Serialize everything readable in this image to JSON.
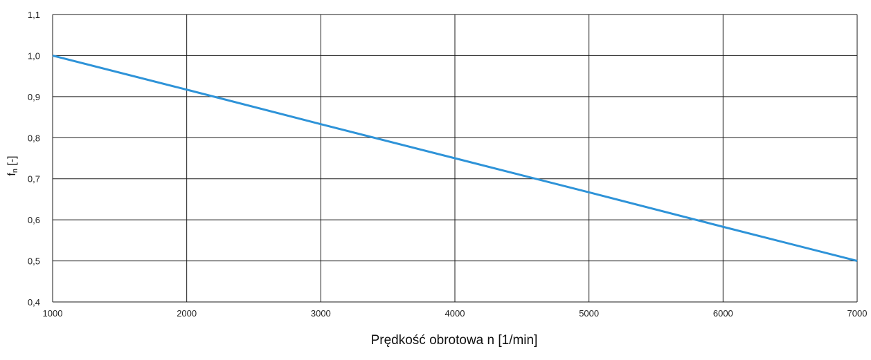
{
  "chart_data": {
    "type": "line",
    "title": "",
    "xlabel": "Prędkość obrotowa n [1/min]",
    "ylabel_main": "f",
    "ylabel_sub": "n",
    "ylabel_unit": " [-]",
    "xlim": [
      1000,
      7000
    ],
    "ylim": [
      0.4,
      1.1
    ],
    "grid": true,
    "x_ticks": [
      1000,
      2000,
      3000,
      4000,
      5000,
      6000,
      7000
    ],
    "x_tick_labels": [
      "1000",
      "2000",
      "3000",
      "4000",
      "5000",
      "6000",
      "7000"
    ],
    "y_ticks": [
      0.4,
      0.5,
      0.6,
      0.7,
      0.8,
      0.9,
      1.0,
      1.1
    ],
    "y_tick_labels": [
      "0,4",
      "0,5",
      "0,6",
      "0,7",
      "0,8",
      "0,9",
      "1,0",
      "1,1"
    ],
    "series": [
      {
        "x": [
          1000,
          2000,
          3000,
          4000,
          5000,
          6000,
          7000
        ],
        "y": [
          1.0,
          0.917,
          0.833,
          0.75,
          0.667,
          0.583,
          0.5
        ],
        "color": "#2e93d8"
      }
    ],
    "colors": {
      "grid": "#1a1a1a",
      "line": "#2e93d8"
    }
  }
}
